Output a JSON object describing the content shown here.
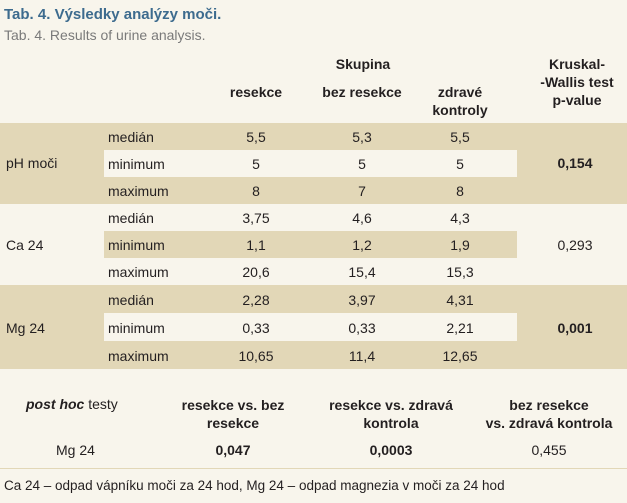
{
  "title": {
    "cz": "Tab. 4. Výsledky analýzy moči.",
    "en": "Tab. 4. Results of urine analysis."
  },
  "header": {
    "group_label": "Skupina",
    "col_resekce": "resekce",
    "col_bez": "bez resekce",
    "col_zdrave_1": "zdravé",
    "col_zdrave_2": "kontroly",
    "kw_1": "Kruskal-",
    "kw_2": "-Wallis test",
    "kw_3": "p-value"
  },
  "groups": [
    {
      "name": "pH moči",
      "p_value": "0,154",
      "rows": [
        {
          "stat": "medián",
          "resekce": "5,5",
          "bez": "5,3",
          "zdrave": "5,5"
        },
        {
          "stat": "minimum",
          "resekce": "5",
          "bez": "5",
          "zdrave": "5"
        },
        {
          "stat": "maximum",
          "resekce": "8",
          "bez": "7",
          "zdrave": "8"
        }
      ]
    },
    {
      "name": "Ca 24",
      "p_value": "0,293",
      "rows": [
        {
          "stat": "medián",
          "resekce": "3,75",
          "bez": "4,6",
          "zdrave": "4,3"
        },
        {
          "stat": "minimum",
          "resekce": "1,1",
          "bez": "1,2",
          "zdrave": "1,9"
        },
        {
          "stat": "maximum",
          "resekce": "20,6",
          "bez": "15,4",
          "zdrave": "15,3"
        }
      ]
    },
    {
      "name": "Mg 24",
      "p_value": "0,001",
      "rows": [
        {
          "stat": "medián",
          "resekce": "2,28",
          "bez": "3,97",
          "zdrave": "4,31"
        },
        {
          "stat": "minimum",
          "resekce": "0,33",
          "bez": "0,33",
          "zdrave": "2,21"
        },
        {
          "stat": "maximum",
          "resekce": "10,65",
          "bez": "11,4",
          "zdrave": "12,65"
        }
      ]
    }
  ],
  "posthoc": {
    "label_italic": "post hoc",
    "label_rest": " testy",
    "h1_1": "resekce vs. bez",
    "h1_2": "resekce",
    "h2_1": "resekce vs. zdravá",
    "h2_2": "kontrola",
    "h3_1": "bez resekce",
    "h3_2": "vs. zdravá kontrola",
    "row_label": "Mg 24",
    "v1": "0,047",
    "v2": "0,0003",
    "v3": "0,455"
  },
  "footnote": "Ca 24 – odpad vápníku moči za 24 hod, Mg 24 – odpad magnezia v moči za 24 hod",
  "colors": {
    "band": "#e2d7b7",
    "background": "#f8f5ec",
    "title": "#3d6b8e"
  }
}
